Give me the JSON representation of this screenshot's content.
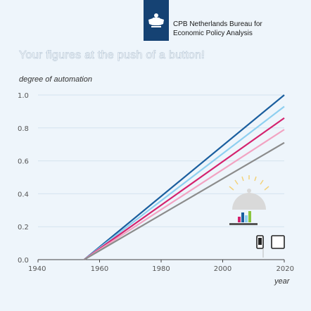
{
  "header": {
    "org_line1": "CPB Netherlands Bureau for",
    "org_line2": "Economic Policy Analysis",
    "slogan": "Your figures at the push of a button!"
  },
  "colors": {
    "background": "#eef5fb",
    "logo_bg": "#154273"
  },
  "chart_data": {
    "type": "line",
    "title": "",
    "xlabel": "year",
    "ylabel": "degree of automation",
    "xlim": [
      1940,
      2020
    ],
    "ylim": [
      0.0,
      1.0
    ],
    "x_ticks": [
      1940,
      1960,
      1980,
      2000,
      2020
    ],
    "x_tick_labels": [
      "1940",
      "1960",
      "1980",
      "2000",
      "2020"
    ],
    "y_ticks": [
      0.0,
      0.2,
      0.4,
      0.6,
      0.8,
      1.0
    ],
    "y_tick_labels": [
      "0.0",
      "0.2",
      "0.4",
      "0.6",
      "0.8",
      "1.0"
    ],
    "grid": true,
    "series": [
      {
        "x": [
          1955,
          2020
        ],
        "y": [
          0.0,
          1.0
        ],
        "color": "#1a5e9e"
      },
      {
        "x": [
          1955,
          2020
        ],
        "y": [
          0.0,
          0.93
        ],
        "color": "#8ecff0"
      },
      {
        "x": [
          1955,
          2020
        ],
        "y": [
          0.0,
          0.86
        ],
        "color": "#d4226e"
      },
      {
        "x": [
          1955,
          2020
        ],
        "y": [
          0.0,
          0.79
        ],
        "color": "#f2a3c2"
      },
      {
        "x": [
          1955,
          2020
        ],
        "y": [
          0.0,
          0.71
        ],
        "color": "#8c8c8c"
      }
    ]
  },
  "decoration": {
    "icon": "cloche-serving-chart-icon",
    "devices_icon": "phone-tablet-icon"
  }
}
